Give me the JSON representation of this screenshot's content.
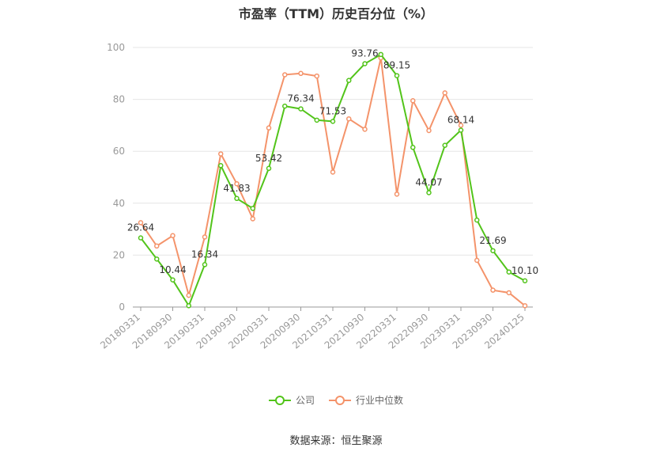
{
  "chart_data": {
    "type": "line",
    "title": "市盈率（TTM）历史百分位（%）",
    "source": "数据来源：恒生聚源",
    "ylim": [
      0,
      100
    ],
    "yticks": [
      0,
      20,
      40,
      60,
      80,
      100
    ],
    "x_tick_labels": [
      "20180331",
      "20180930",
      "20190331",
      "20190930",
      "20200331",
      "20200930",
      "20210331",
      "20210930",
      "20220331",
      "20220930",
      "20230331",
      "20230930",
      "20240125"
    ],
    "grid": true,
    "legend_position": "bottom",
    "series": [
      {
        "name": "公司",
        "color": "#52c41a",
        "values": [
          26.64,
          18.5,
          10.44,
          0.5,
          16.34,
          54.5,
          41.83,
          38,
          53.42,
          77.4,
          76.34,
          72,
          71.53,
          87.3,
          93.76,
          97.3,
          89.15,
          61.5,
          44.07,
          62.3,
          68.14,
          33.5,
          21.69,
          13.5,
          10.1
        ],
        "labels": {
          "0": "26.64",
          "2": "10.44",
          "4": "16.34",
          "6": "41.83",
          "8": "53.42",
          "10": "76.34",
          "12": "71.53",
          "14": "93.76",
          "16": "89.15",
          "18": "44.07",
          "20": "68.14",
          "22": "21.69",
          "24": "10.10"
        }
      },
      {
        "name": "行业中位数",
        "color": "#f4936a",
        "values": [
          32.5,
          23.5,
          27.5,
          4.5,
          27,
          59,
          47.5,
          34,
          69,
          89.5,
          90,
          89,
          52,
          72.5,
          68.5,
          96,
          43.5,
          79.5,
          68,
          82.5,
          70,
          18,
          6.5,
          5.5,
          0.5
        ]
      }
    ]
  }
}
